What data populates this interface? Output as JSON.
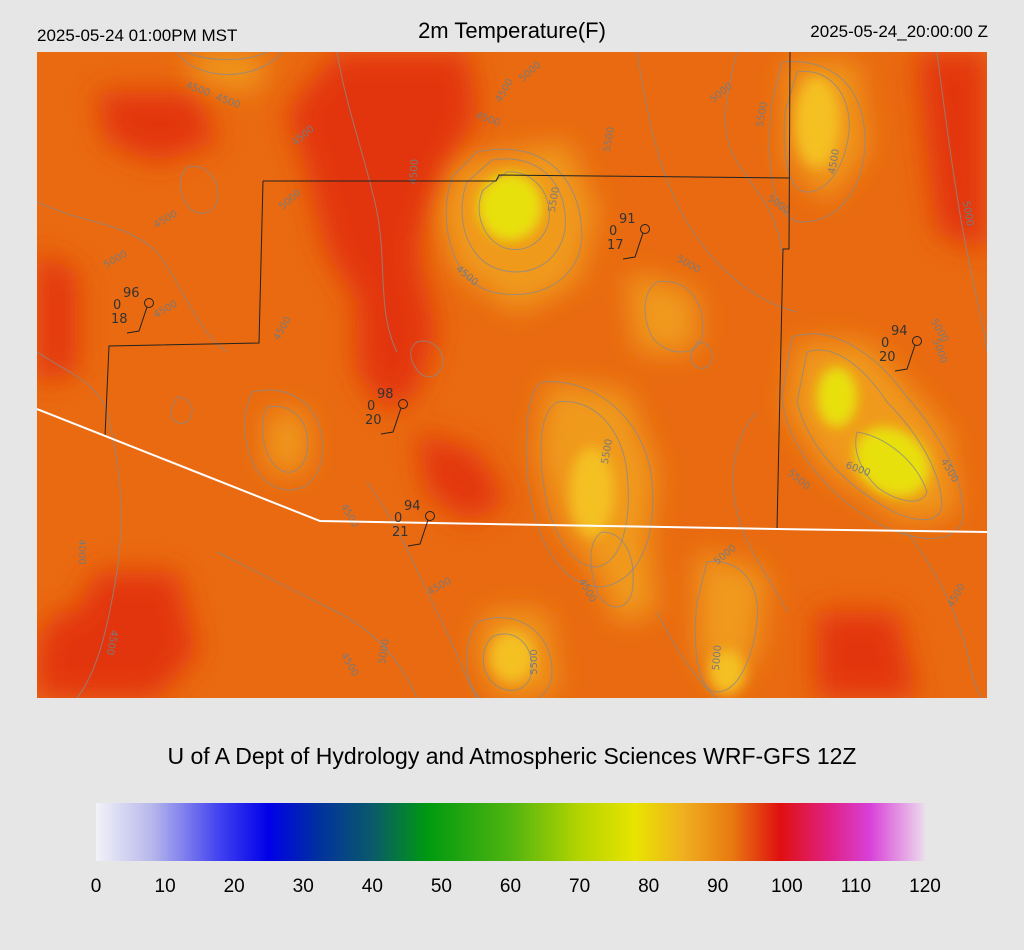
{
  "header": {
    "local_time": "2025-05-24 01:00PM MST",
    "title": "2m Temperature(F)",
    "utc_time": "2025-05-24_20:00:00 Z"
  },
  "footer": {
    "credit": "U of A Dept of Hydrology and Atmospheric Sciences WRF-GFS 12Z"
  },
  "colorbar": {
    "ticks": [
      "0",
      "10",
      "20",
      "30",
      "40",
      "50",
      "60",
      "70",
      "80",
      "90",
      "100",
      "110",
      "120"
    ],
    "value_range": [
      0,
      120
    ],
    "stops": [
      {
        "value": 0,
        "color": "#f2f2f8"
      },
      {
        "value": 8,
        "color": "#b8b8ec"
      },
      {
        "value": 18,
        "color": "#4040f0"
      },
      {
        "value": 25,
        "color": "#0000e8"
      },
      {
        "value": 32,
        "color": "#0030a0"
      },
      {
        "value": 40,
        "color": "#0a5a6a"
      },
      {
        "value": 48,
        "color": "#009a10"
      },
      {
        "value": 60,
        "color": "#50b410"
      },
      {
        "value": 70,
        "color": "#b4d400"
      },
      {
        "value": 78,
        "color": "#e8e400"
      },
      {
        "value": 85,
        "color": "#f0b020"
      },
      {
        "value": 92,
        "color": "#e87a10"
      },
      {
        "value": 99,
        "color": "#e01010"
      },
      {
        "value": 106,
        "color": "#e02080"
      },
      {
        "value": 112,
        "color": "#d840d8"
      },
      {
        "value": 120,
        "color": "#ecdcec"
      }
    ]
  },
  "colors": {
    "background": "#e6e6e6",
    "map_base": "#e96a10",
    "hot": "#e3360a",
    "warm": "#f09a1c",
    "cool": "#e6e010",
    "contour": "#8a8a8a",
    "border": "#222222",
    "state_line": "#ffffff"
  },
  "stations": [
    {
      "temp": "96",
      "mid": "0",
      "dew": "18"
    },
    {
      "temp": "91",
      "mid": "0",
      "dew": "17"
    },
    {
      "temp": "98",
      "mid": "0",
      "dew": "20"
    },
    {
      "temp": "94",
      "mid": "0",
      "dew": "20"
    },
    {
      "temp": "94",
      "mid": "0",
      "dew": "21"
    }
  ],
  "contour_labels": [
    "4500",
    "4500",
    "5000",
    "5500",
    "5000",
    "5500",
    "4500",
    "4500",
    "5000",
    "5000",
    "5500",
    "4500",
    "5000",
    "5500",
    "6000",
    "5500",
    "5000",
    "4500",
    "4500",
    "4500",
    "5000",
    "5500",
    "4500",
    "4000",
    "4500",
    "5000",
    "4500",
    "5000",
    "4500",
    "4500",
    "5000",
    "4500",
    "4500",
    "5000",
    "4500",
    "5000",
    "4500",
    "4500"
  ]
}
